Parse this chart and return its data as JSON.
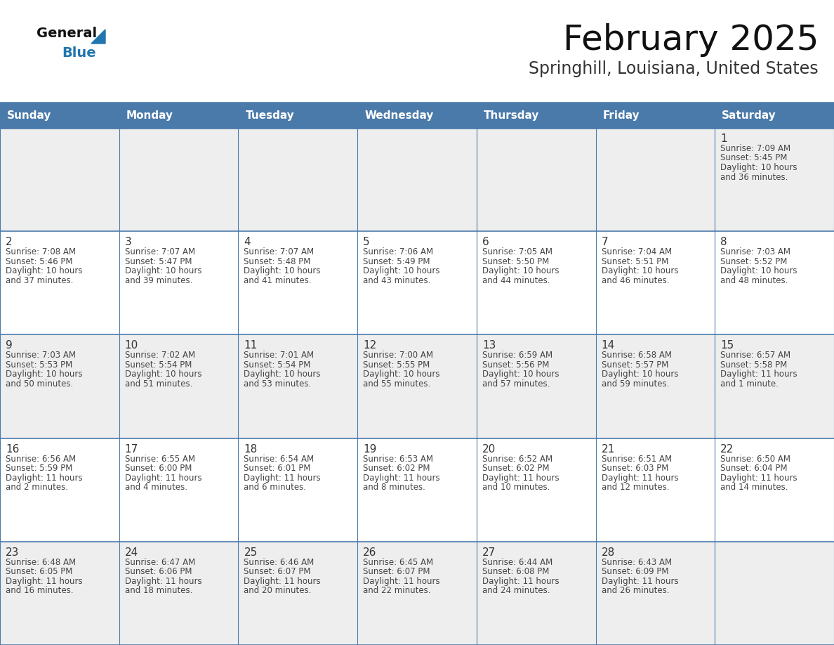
{
  "title": "February 2025",
  "subtitle": "Springhill, Louisiana, United States",
  "header_color": "#4a7aaa",
  "header_text_color": "#FFFFFF",
  "day_names": [
    "Sunday",
    "Monday",
    "Tuesday",
    "Wednesday",
    "Thursday",
    "Friday",
    "Saturday"
  ],
  "bg_color": "#FFFFFF",
  "cell_bg_row0": "#EEEEEE",
  "cell_bg_row1": "#FFFFFF",
  "cell_bg_row2": "#EEEEEE",
  "cell_bg_row3": "#FFFFFF",
  "cell_bg_row4": "#EEEEEE",
  "border_color": "#4a7aaa",
  "day_num_color": "#333333",
  "info_color": "#444444",
  "title_color": "#111111",
  "subtitle_color": "#333333",
  "general_text_color": "#111111",
  "blue_text_color": "#2176AE",
  "triangle_color": "#2176AE",
  "days_data": [
    {
      "day": 1,
      "col": 6,
      "row": 0,
      "sunrise": "7:09 AM",
      "sunset": "5:45 PM",
      "daylight": "10 hours and 36 minutes."
    },
    {
      "day": 2,
      "col": 0,
      "row": 1,
      "sunrise": "7:08 AM",
      "sunset": "5:46 PM",
      "daylight": "10 hours and 37 minutes."
    },
    {
      "day": 3,
      "col": 1,
      "row": 1,
      "sunrise": "7:07 AM",
      "sunset": "5:47 PM",
      "daylight": "10 hours and 39 minutes."
    },
    {
      "day": 4,
      "col": 2,
      "row": 1,
      "sunrise": "7:07 AM",
      "sunset": "5:48 PM",
      "daylight": "10 hours and 41 minutes."
    },
    {
      "day": 5,
      "col": 3,
      "row": 1,
      "sunrise": "7:06 AM",
      "sunset": "5:49 PM",
      "daylight": "10 hours and 43 minutes."
    },
    {
      "day": 6,
      "col": 4,
      "row": 1,
      "sunrise": "7:05 AM",
      "sunset": "5:50 PM",
      "daylight": "10 hours and 44 minutes."
    },
    {
      "day": 7,
      "col": 5,
      "row": 1,
      "sunrise": "7:04 AM",
      "sunset": "5:51 PM",
      "daylight": "10 hours and 46 minutes."
    },
    {
      "day": 8,
      "col": 6,
      "row": 1,
      "sunrise": "7:03 AM",
      "sunset": "5:52 PM",
      "daylight": "10 hours and 48 minutes."
    },
    {
      "day": 9,
      "col": 0,
      "row": 2,
      "sunrise": "7:03 AM",
      "sunset": "5:53 PM",
      "daylight": "10 hours and 50 minutes."
    },
    {
      "day": 10,
      "col": 1,
      "row": 2,
      "sunrise": "7:02 AM",
      "sunset": "5:54 PM",
      "daylight": "10 hours and 51 minutes."
    },
    {
      "day": 11,
      "col": 2,
      "row": 2,
      "sunrise": "7:01 AM",
      "sunset": "5:54 PM",
      "daylight": "10 hours and 53 minutes."
    },
    {
      "day": 12,
      "col": 3,
      "row": 2,
      "sunrise": "7:00 AM",
      "sunset": "5:55 PM",
      "daylight": "10 hours and 55 minutes."
    },
    {
      "day": 13,
      "col": 4,
      "row": 2,
      "sunrise": "6:59 AM",
      "sunset": "5:56 PM",
      "daylight": "10 hours and 57 minutes."
    },
    {
      "day": 14,
      "col": 5,
      "row": 2,
      "sunrise": "6:58 AM",
      "sunset": "5:57 PM",
      "daylight": "10 hours and 59 minutes."
    },
    {
      "day": 15,
      "col": 6,
      "row": 2,
      "sunrise": "6:57 AM",
      "sunset": "5:58 PM",
      "daylight": "11 hours and 1 minute."
    },
    {
      "day": 16,
      "col": 0,
      "row": 3,
      "sunrise": "6:56 AM",
      "sunset": "5:59 PM",
      "daylight": "11 hours and 2 minutes."
    },
    {
      "day": 17,
      "col": 1,
      "row": 3,
      "sunrise": "6:55 AM",
      "sunset": "6:00 PM",
      "daylight": "11 hours and 4 minutes."
    },
    {
      "day": 18,
      "col": 2,
      "row": 3,
      "sunrise": "6:54 AM",
      "sunset": "6:01 PM",
      "daylight": "11 hours and 6 minutes."
    },
    {
      "day": 19,
      "col": 3,
      "row": 3,
      "sunrise": "6:53 AM",
      "sunset": "6:02 PM",
      "daylight": "11 hours and 8 minutes."
    },
    {
      "day": 20,
      "col": 4,
      "row": 3,
      "sunrise": "6:52 AM",
      "sunset": "6:02 PM",
      "daylight": "11 hours and 10 minutes."
    },
    {
      "day": 21,
      "col": 5,
      "row": 3,
      "sunrise": "6:51 AM",
      "sunset": "6:03 PM",
      "daylight": "11 hours and 12 minutes."
    },
    {
      "day": 22,
      "col": 6,
      "row": 3,
      "sunrise": "6:50 AM",
      "sunset": "6:04 PM",
      "daylight": "11 hours and 14 minutes."
    },
    {
      "day": 23,
      "col": 0,
      "row": 4,
      "sunrise": "6:48 AM",
      "sunset": "6:05 PM",
      "daylight": "11 hours and 16 minutes."
    },
    {
      "day": 24,
      "col": 1,
      "row": 4,
      "sunrise": "6:47 AM",
      "sunset": "6:06 PM",
      "daylight": "11 hours and 18 minutes."
    },
    {
      "day": 25,
      "col": 2,
      "row": 4,
      "sunrise": "6:46 AM",
      "sunset": "6:07 PM",
      "daylight": "11 hours and 20 minutes."
    },
    {
      "day": 26,
      "col": 3,
      "row": 4,
      "sunrise": "6:45 AM",
      "sunset": "6:07 PM",
      "daylight": "11 hours and 22 minutes."
    },
    {
      "day": 27,
      "col": 4,
      "row": 4,
      "sunrise": "6:44 AM",
      "sunset": "6:08 PM",
      "daylight": "11 hours and 24 minutes."
    },
    {
      "day": 28,
      "col": 5,
      "row": 4,
      "sunrise": "6:43 AM",
      "sunset": "6:09 PM",
      "daylight": "11 hours and 26 minutes."
    }
  ],
  "row_colors": [
    "#EEEEEE",
    "#FFFFFF",
    "#EEEEEE",
    "#FFFFFF",
    "#EEEEEE"
  ]
}
